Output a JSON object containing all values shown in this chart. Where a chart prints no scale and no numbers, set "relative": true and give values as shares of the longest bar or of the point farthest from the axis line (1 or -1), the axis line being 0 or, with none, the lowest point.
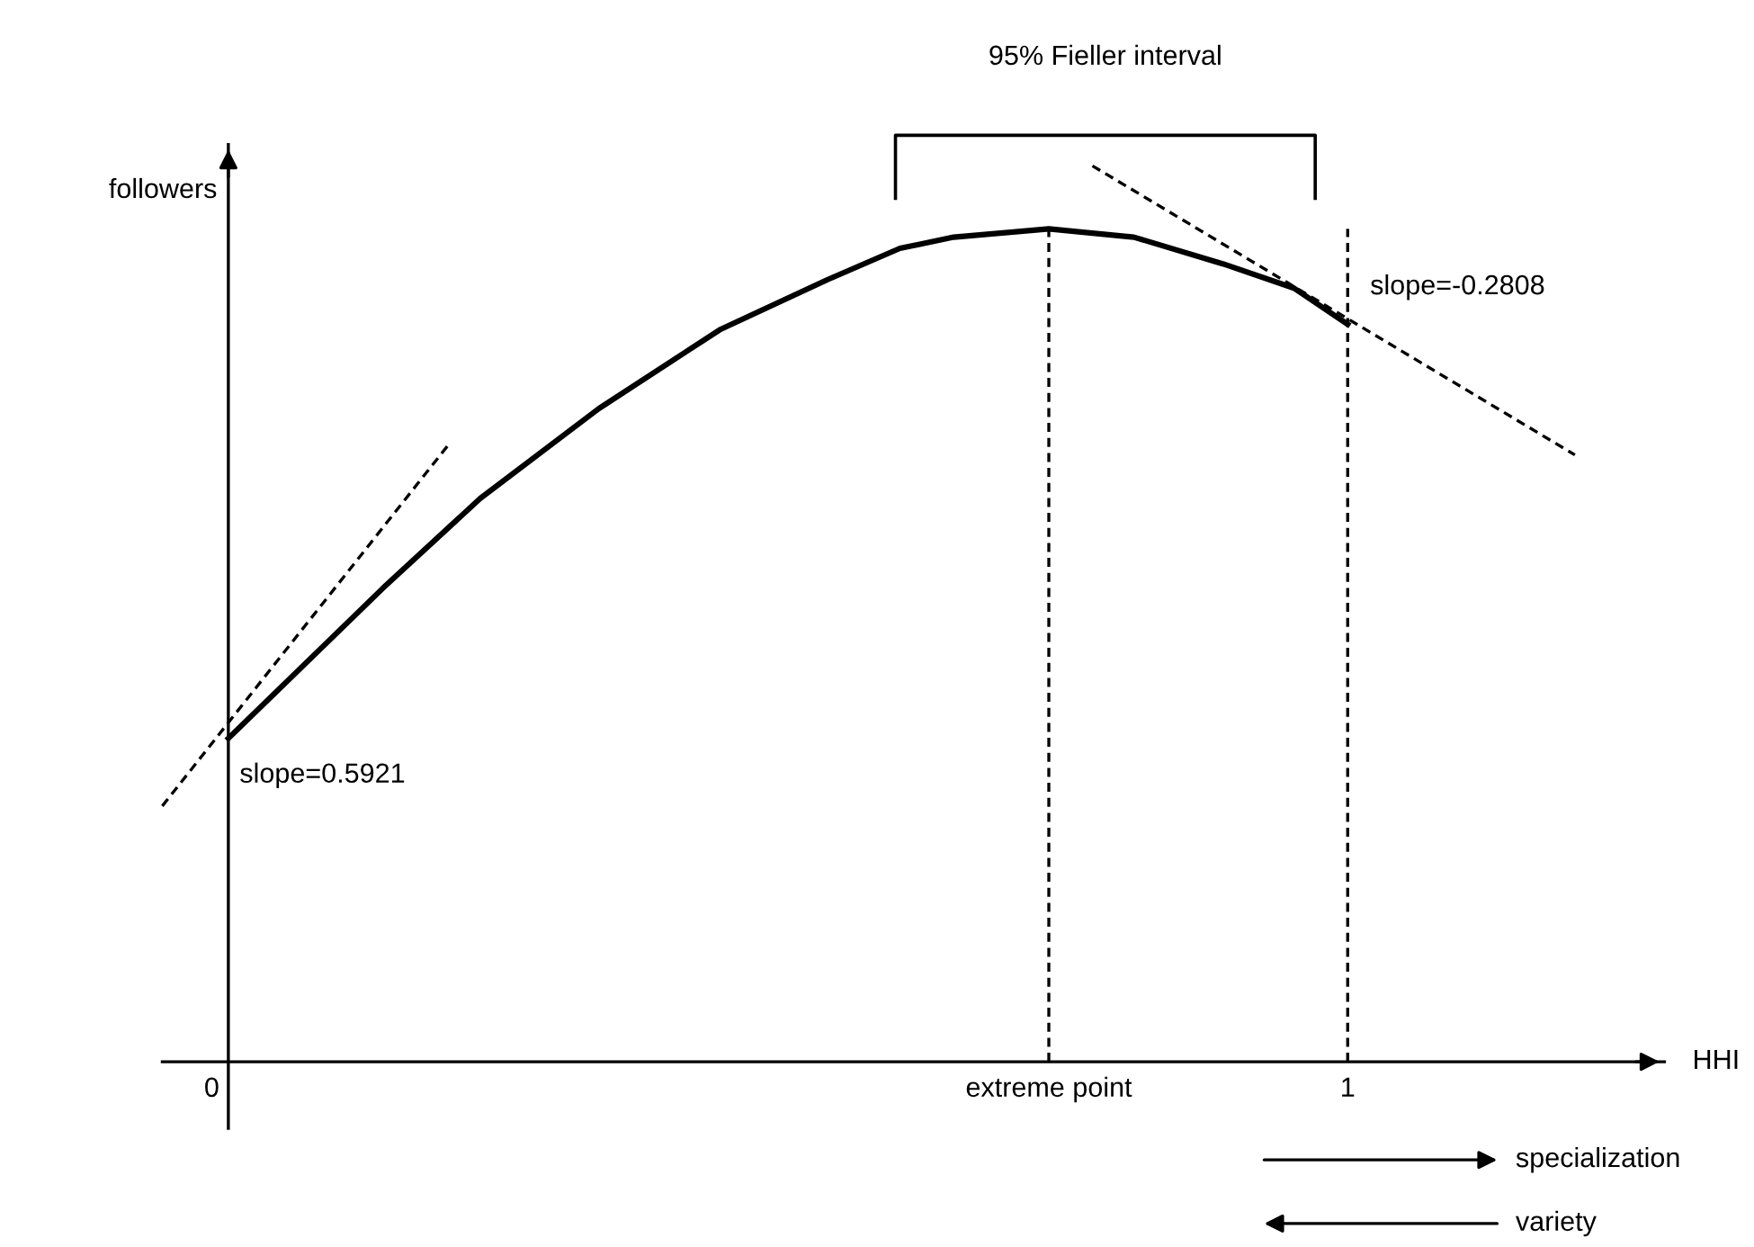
{
  "chart_data": {
    "type": "line",
    "relative": true,
    "xlabel": "HHI",
    "ylabel": "followers",
    "xlim": [
      -0.059,
      1.283
    ],
    "xticks": [
      0,
      {
        "value": 0.733,
        "label": "extreme point"
      },
      1
    ],
    "series": [
      {
        "color": "#000000",
        "line_style": "solid",
        "x": [
          0,
          0.138,
          0.225,
          0.331,
          0.439,
          0.535,
          0.6,
          0.648,
          0.733,
          0.809,
          0.889,
          0.952,
          1
        ],
        "values": [
          0.349,
          0.511,
          0.608,
          0.705,
          0.79,
          0.844,
          0.878,
          0.89,
          0.899,
          0.89,
          0.861,
          0.835,
          0.796
        ]
      },
      {
        "color": "#000000",
        "line_style": "dashed",
        "x": [
          -0.059,
          0.198
        ],
        "values": [
          0.276,
          0.668
        ]
      },
      {
        "color": "#000000",
        "line_style": "dashed",
        "x": [
          0.772,
          1.203
        ],
        "values": [
          0.967,
          0.655
        ]
      },
      {
        "name": "95% Fieller interval",
        "color": "#000000",
        "line_style": "solid",
        "x": [
          0.596,
          0.596,
          0.971,
          0.971
        ],
        "values": [
          0.932,
          1,
          1,
          0.932
        ]
      }
    ],
    "ref_lines": [
      {
        "axis": "x",
        "value": 0.733,
        "color": "#000000",
        "line_style": "dashed"
      },
      {
        "axis": "x",
        "value": 1,
        "color": "#000000",
        "line_style": "dashed"
      }
    ],
    "annotations": [
      {
        "text": "slope=0.5921",
        "x": 0,
        "y": 0.349
      },
      {
        "text": "slope=-0.2808",
        "x": 1,
        "y": 0.796
      },
      "specialization",
      "variety"
    ],
    "grid": false,
    "legend": false
  }
}
